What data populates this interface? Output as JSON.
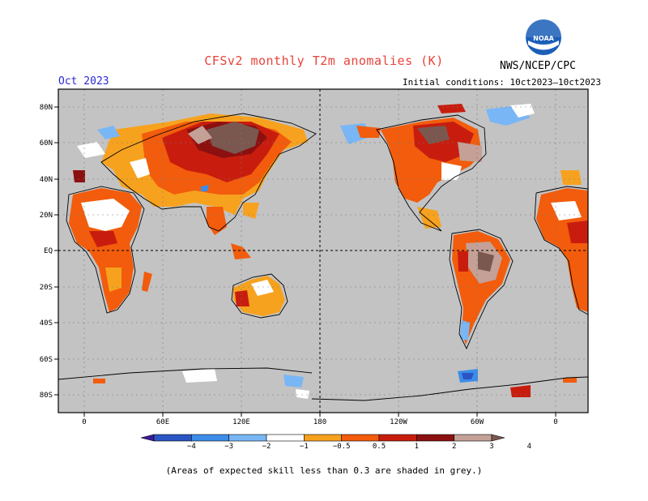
{
  "header": {
    "title": "CFSv2 monthly T2m anomalies (K)",
    "month": "Oct 2023",
    "initial_conditions": "Initial conditions: 10ct2023–10ct2023",
    "agency": "NWS/NCEP/CPC",
    "logo_text": "NOAA"
  },
  "axes": {
    "lat_labels": [
      "80N",
      "60N",
      "40N",
      "20N",
      "EQ",
      "20S",
      "40S",
      "60S",
      "80S"
    ],
    "lon_labels": [
      "0",
      "60E",
      "120E",
      "180",
      "120W",
      "60W",
      "0"
    ]
  },
  "colorbar": {
    "labels": [
      "−4",
      "−3",
      "−2",
      "−1",
      "−0.5",
      "0.5",
      "1",
      "2",
      "3",
      "4"
    ],
    "colors": [
      "#3b1a9a",
      "#2a56c4",
      "#3c8de8",
      "#79b6f5",
      "#ffffff",
      "#f7a21e",
      "#f25c0c",
      "#c81d0e",
      "#8c1010",
      "#c4a096",
      "#7a5850"
    ]
  },
  "map_colors": {
    "ocean": "#c3c3c3",
    "light_orange": "#f7a21e",
    "orange": "#f25c0c",
    "red": "#c81d0e",
    "dark_red": "#8c1010",
    "brown": "#7a5850",
    "tan": "#c4a096",
    "light_blue": "#79b6f5",
    "blue": "#3c8de8",
    "dark_blue": "#2a56c4"
  },
  "footnote": "(Areas of expected skill less than 0.3 are shaded in grey.)"
}
